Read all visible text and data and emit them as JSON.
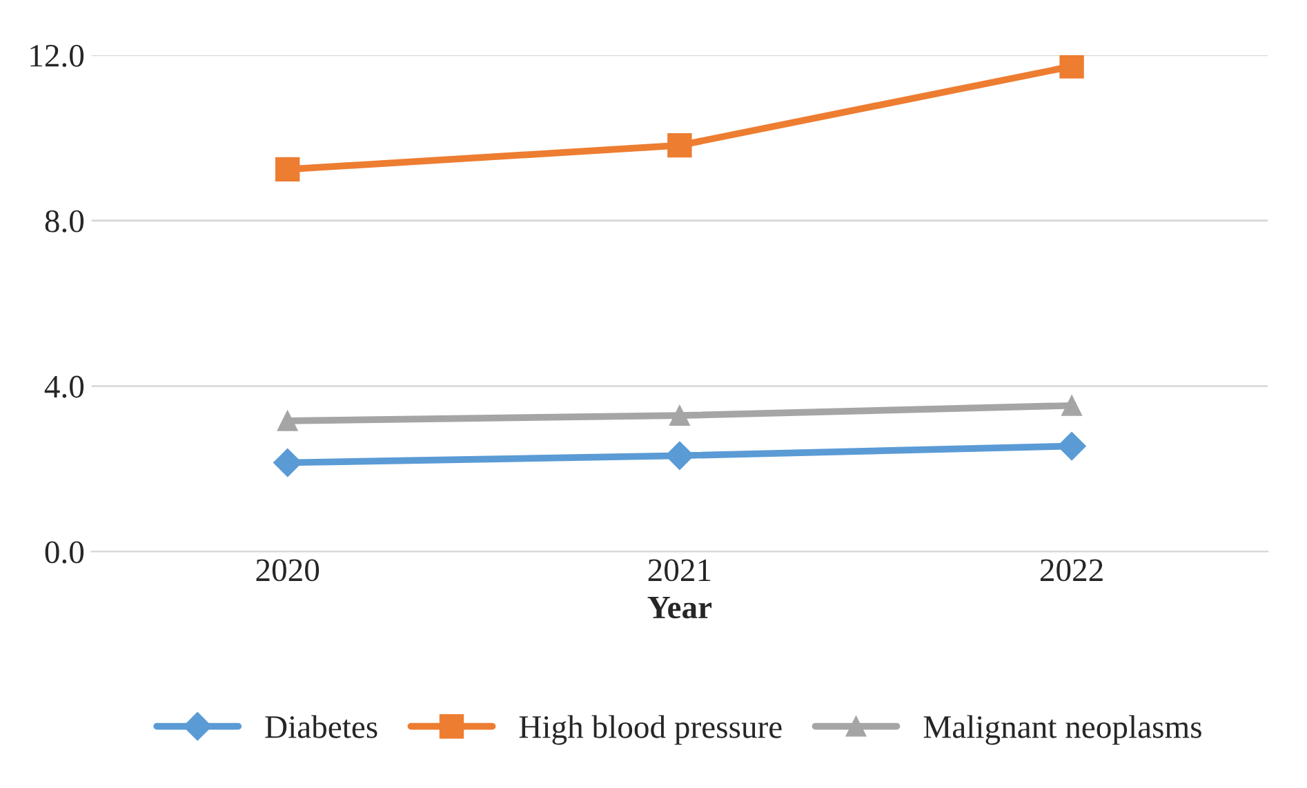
{
  "chart_data": {
    "type": "line",
    "xlabel": "Year",
    "categories": [
      "2020",
      "2021",
      "2022"
    ],
    "series": [
      {
        "name": "Diabetes",
        "color": "#5b9bd5",
        "marker": "diamond",
        "values": [
          2.15,
          2.32,
          2.55
        ]
      },
      {
        "name": "High blood pressure",
        "color": "#ed7d31",
        "marker": "square",
        "values": [
          9.24,
          9.82,
          11.73
        ]
      },
      {
        "name": "Malignant neoplasms",
        "color": "#a5a5a5",
        "marker": "triangle",
        "values": [
          3.16,
          3.29,
          3.53
        ]
      }
    ],
    "ylim": [
      0,
      12
    ],
    "yticks": [
      {
        "value": 0,
        "label": "0.0"
      },
      {
        "value": 4,
        "label": "4.0"
      },
      {
        "value": 8,
        "label": "8.0"
      },
      {
        "value": 12,
        "label": "12.0"
      }
    ],
    "grid": "y",
    "legend": "bottom",
    "line_style": "solid"
  }
}
